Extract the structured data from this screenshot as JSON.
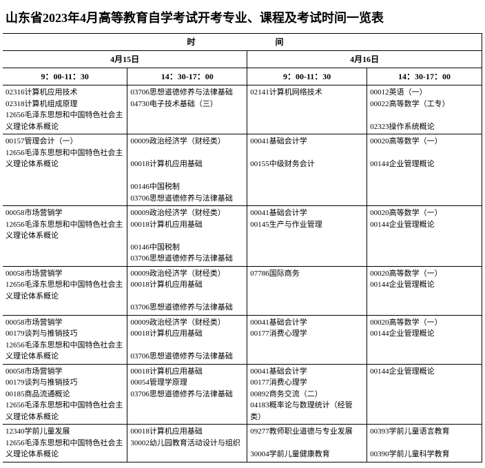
{
  "title": "山东省2023年4月高等教育自学考试开考专业、课程及考试时间一览表",
  "headers": {
    "time_label": "时　　　间",
    "date1": "4月15日",
    "date2": "4月16日",
    "slot1": "9：00-11：30",
    "slot2": "14：30-17：00",
    "slot3": "9：00-11：30",
    "slot4": "14：30-17：00"
  },
  "rows": [
    {
      "c1": "02316计算机应用技术\n02318计算机组成原理\n12656毛泽东思想和中国特色社会主义理论体系概论",
      "c2": "03706思想道德修养与法律基础\n04730电子技术基础（三）",
      "c3": "02141计算机网络技术",
      "c4": "00012英语（一）\n00022高等数学（工专）\n\n02323操作系统概论"
    },
    {
      "c1": "00157管理会计（一）\n12656毛泽东思想和中国特色社会主义理论体系概论",
      "c2": "00009政治经济学（财经类）\n\n00018计算机应用基础\n\n00146中国税制\n03706思想道德修养与法律基础",
      "c3": "00041基础会计学\n\n00155中级财务会计",
      "c4": "00020高等数学（一）\n\n00144企业管理概论"
    },
    {
      "c1": "00058市场营销学\n12656毛泽东思想和中国特色社会主义理论体系概论",
      "c2": "00009政治经济学（财经类）\n00018计算机应用基础\n\n00146中国税制\n03706思想道德修养与法律基础",
      "c3": "00041基础会计学\n00145生产与作业管理",
      "c4": "00020高等数学（一）\n00144企业管理概论"
    },
    {
      "c1": "00058市场营销学\n12656毛泽东思想和中国特色社会主义理论体系概论",
      "c2": "00009政治经济学（财经类）\n00018计算机应用基础\n\n03706思想道德修养与法律基础",
      "c3": "07786国际商务",
      "c4": "00020高等数学（一）\n00144企业管理概论"
    },
    {
      "c1": "00058市场营销学\n00179谈判与推销技巧\n12656毛泽东思想和中国特色社会主义理论体系概论",
      "c2": "00009政治经济学（财经类）\n00018计算机应用基础\n\n03706思想道德修养与法律基础",
      "c3": "00041基础会计学\n00177消费心理学",
      "c4": "00020高等数学（一）\n00144企业管理概论"
    },
    {
      "c1": "00058市场营销学\n00179谈判与推销技巧\n00185商品流通概论\n12656毛泽东思想和中国特色社会主义理论体系概论",
      "c2": "00018计算机应用基础\n00054管理学原理\n03706思想道德修养与法律基础",
      "c3": "00041基础会计学\n00177消费心理学\n00892商务交流（二）\n04183概率论与数理统计（经管类）",
      "c4": "00144企业管理概论"
    },
    {
      "c1": "12340学前儿童发展\n12656毛泽东思想和中国特色社会主义理论体系概论",
      "c2": "00018计算机应用基础\n30002幼儿园教育活动设计与组织",
      "c3": "09277教师职业道德与专业发展\n\n30004学前儿童健康教育",
      "c4": "00393学前儿童语言教育\n\n00390学前儿童科学教育"
    }
  ]
}
